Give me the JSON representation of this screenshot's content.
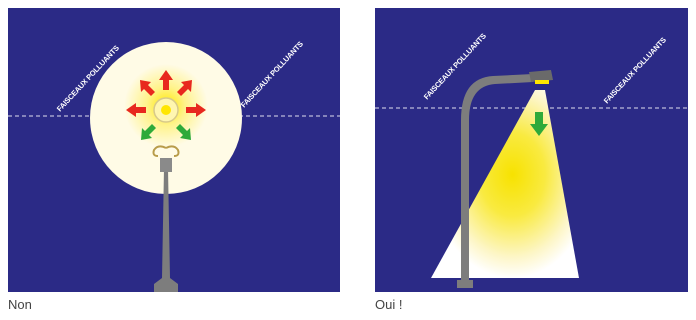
{
  "panels": [
    {
      "caption": "Non",
      "labels": [
        "FAISCEAUX POLLUANTS",
        "FAISCEAUX POLLUANTS"
      ]
    },
    {
      "caption": "Oui !",
      "labels": [
        "FAISCEAUX POLLUANTS",
        "FAISCEAUX POLLUANTS"
      ]
    }
  ],
  "colors": {
    "sky": "#2b2a86",
    "halo": "#fffbe6",
    "light": "#f7e200",
    "ground_shadow": "#ffffff",
    "pole": "#7d7d7d",
    "arrow_up": "#e8281e",
    "arrow_down": "#2eaa3a"
  },
  "icons": {
    "left_arrows_up": "red-arrow-icon",
    "left_arrows_down": "green-arrow-icon",
    "right_arrow": "green-arrow-down-icon"
  }
}
